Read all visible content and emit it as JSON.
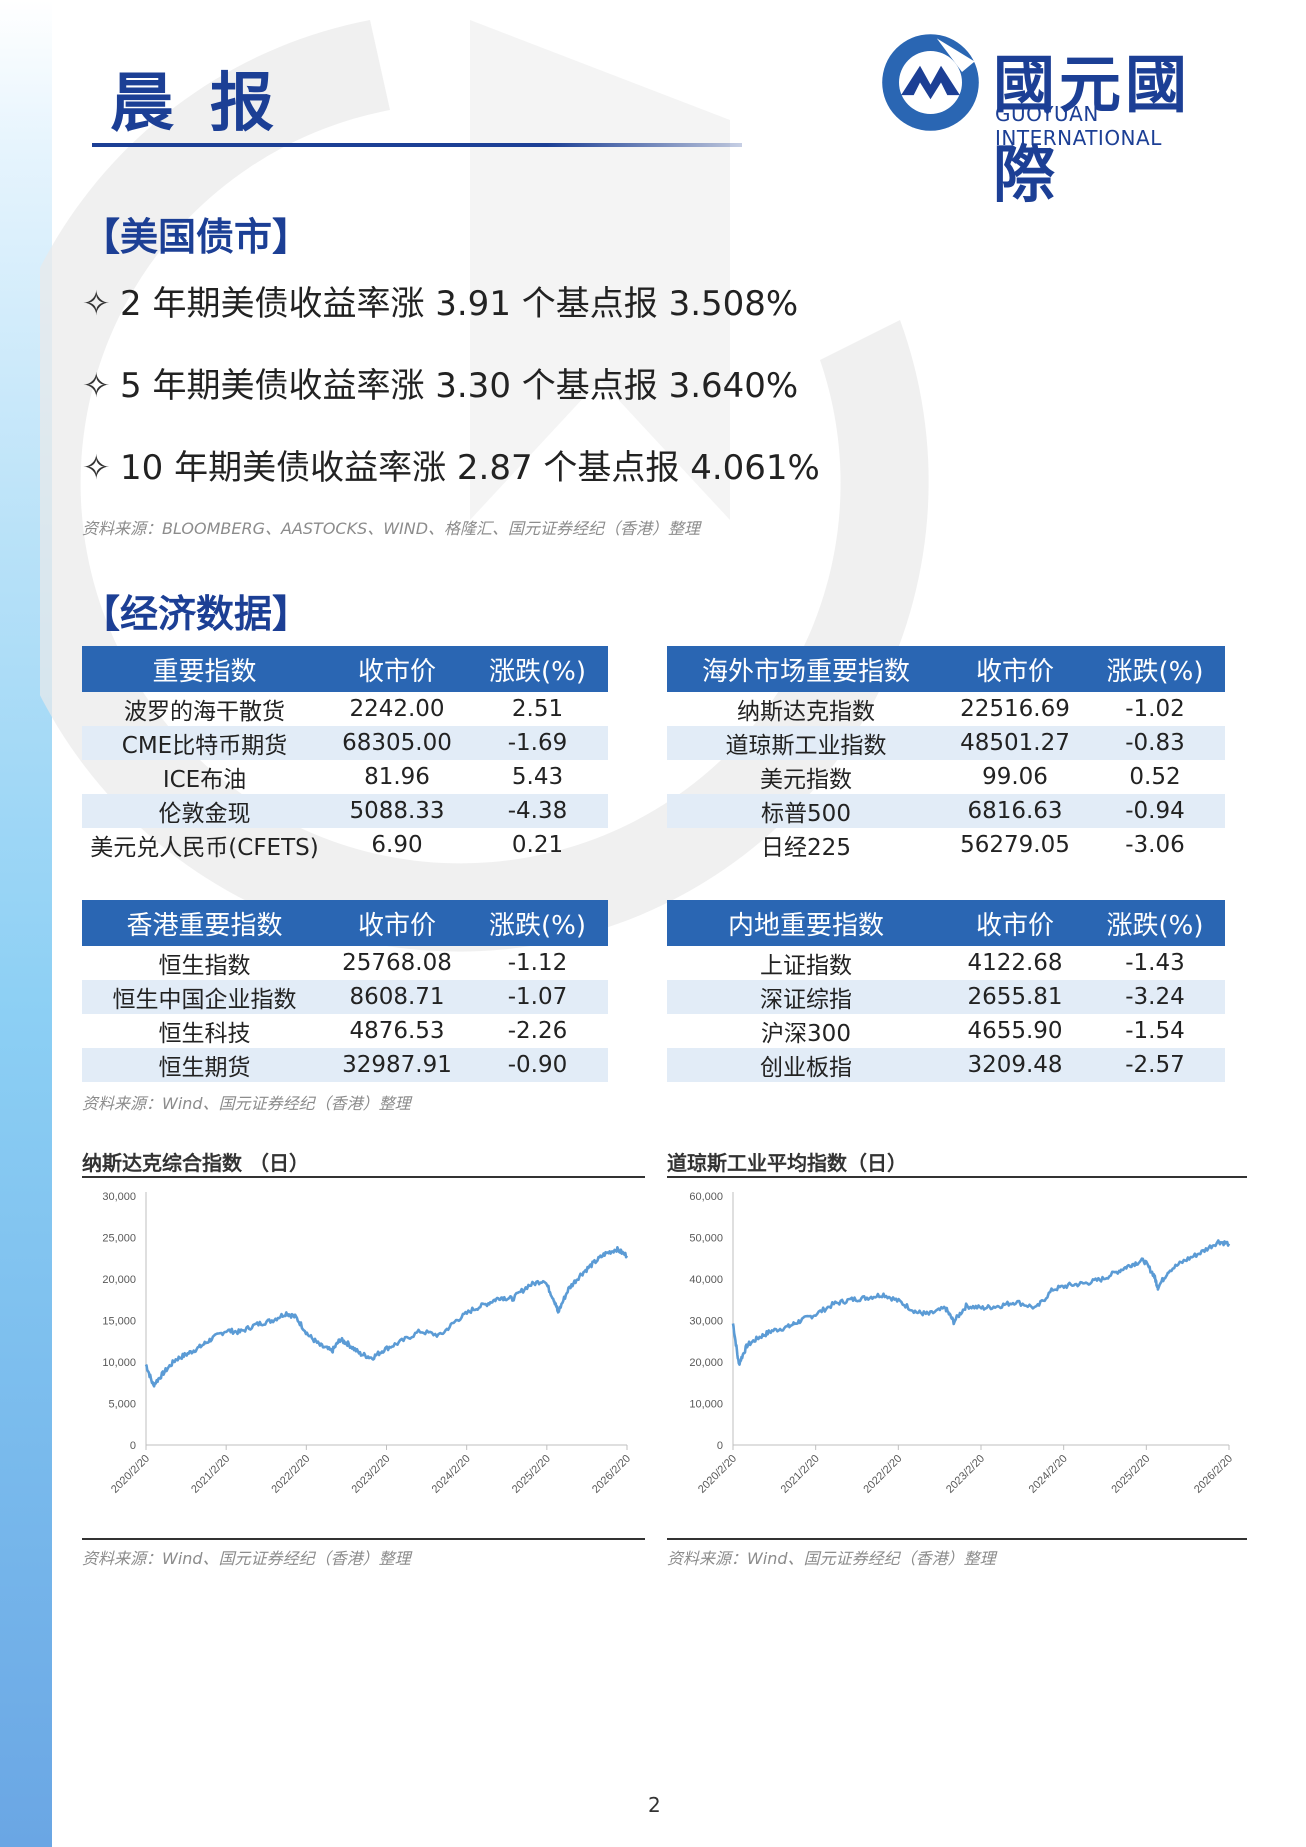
{
  "header": {
    "title": "晨报",
    "logo_cn": "國元國際",
    "logo_en": "GUOYUAN INTERNATIONAL"
  },
  "bond": {
    "heading": "【美国债市】",
    "items": [
      "2 年期美债收益率涨 3.91 个基点报 3.508%",
      "5 年期美债收益率涨 3.30 个基点报 3.640%",
      "10 年期美债收益率涨 2.87 个基点报 4.061%"
    ],
    "source": "资料来源：BLOOMBERG、AASTOCKS、WIND、格隆汇、国元证券经纪（香港）整理"
  },
  "econ": {
    "heading": "【经济数据】",
    "tables": {
      "key": {
        "headers": [
          "重要指数",
          "收市价",
          "涨跌(%)"
        ],
        "rows": [
          [
            "波罗的海干散货",
            "2242.00",
            "2.51"
          ],
          [
            "CME比特币期货",
            "68305.00",
            "-1.69"
          ],
          [
            "ICE布油",
            "81.96",
            "5.43"
          ],
          [
            "伦敦金现",
            "5088.33",
            "-4.38"
          ],
          [
            "美元兑人民币(CFETS)",
            "6.90",
            "0.21"
          ]
        ]
      },
      "overseas": {
        "headers": [
          "海外市场重要指数",
          "收市价",
          "涨跌(%)"
        ],
        "rows": [
          [
            "纳斯达克指数",
            "22516.69",
            "-1.02"
          ],
          [
            "道琼斯工业指数",
            "48501.27",
            "-0.83"
          ],
          [
            "美元指数",
            "99.06",
            "0.52"
          ],
          [
            "标普500",
            "6816.63",
            "-0.94"
          ],
          [
            "日经225",
            "56279.05",
            "-3.06"
          ]
        ]
      },
      "hk": {
        "headers": [
          "香港重要指数",
          "收市价",
          "涨跌(%)"
        ],
        "rows": [
          [
            "恒生指数",
            "25768.08",
            "-1.12"
          ],
          [
            "恒生中国企业指数",
            "8608.71",
            "-1.07"
          ],
          [
            "恒生科技",
            "4876.53",
            "-2.26"
          ],
          [
            "恒生期货",
            "32987.91",
            "-0.90"
          ]
        ]
      },
      "mainland": {
        "headers": [
          "内地重要指数",
          "收市价",
          "涨跌(%)"
        ],
        "rows": [
          [
            "上证指数",
            "4122.68",
            "-1.43"
          ],
          [
            "深证综指",
            "2655.81",
            "-3.24"
          ],
          [
            "沪深300",
            "4655.90",
            "-1.54"
          ],
          [
            "创业板指",
            "3209.48",
            "-2.57"
          ]
        ]
      }
    },
    "source": "资料来源：Wind、国元证券经纪（香港）整理"
  },
  "chart_data": [
    {
      "type": "line",
      "title": "纳斯达克综合指数 （日）",
      "x_ticks": [
        "2020/2/20",
        "2021/2/20",
        "2022/2/20",
        "2023/2/20",
        "2024/2/20",
        "2025/2/20",
        "2026/2/20"
      ],
      "y_ticks": [
        "0",
        "5,000",
        "10,000",
        "15,000",
        "20,000",
        "25,000",
        "30,000"
      ],
      "ylim": [
        0,
        30000
      ],
      "color": "#5b9bd5",
      "x": [
        2020.13,
        2020.22,
        2020.35,
        2020.5,
        2020.65,
        2020.8,
        2020.95,
        2021.13,
        2021.3,
        2021.5,
        2021.7,
        2021.88,
        2022.0,
        2022.15,
        2022.3,
        2022.45,
        2022.55,
        2022.65,
        2022.8,
        2022.95,
        2023.1,
        2023.3,
        2023.55,
        2023.8,
        2024.0,
        2024.2,
        2024.4,
        2024.55,
        2024.7,
        2024.9,
        2025.1,
        2025.22,
        2025.27,
        2025.4,
        2025.55,
        2025.7,
        2025.85,
        2026.0,
        2026.13
      ],
      "values": [
        9700,
        7200,
        8700,
        10300,
        11000,
        11800,
        12800,
        13800,
        13600,
        14500,
        15000,
        15900,
        15400,
        13300,
        12000,
        11300,
        12700,
        12200,
        11000,
        10500,
        11500,
        12400,
        13700,
        13200,
        15000,
        16300,
        17100,
        17800,
        17600,
        19200,
        19900,
        17500,
        16000,
        18800,
        20500,
        21800,
        23000,
        23600,
        22800
      ]
    },
    {
      "type": "line",
      "title": "道琼斯工业平均指数（日）",
      "x_ticks": [
        "2020/2/20",
        "2021/2/20",
        "2022/2/20",
        "2023/2/20",
        "2024/2/20",
        "2025/2/20",
        "2026/2/20"
      ],
      "y_ticks": [
        "0",
        "10,000",
        "20,000",
        "30,000",
        "40,000",
        "50,000",
        "60,000"
      ],
      "ylim": [
        0,
        60000
      ],
      "color": "#5b9bd5",
      "x": [
        2020.13,
        2020.2,
        2020.3,
        2020.45,
        2020.6,
        2020.8,
        2020.95,
        2021.13,
        2021.35,
        2021.55,
        2021.75,
        2021.95,
        2022.15,
        2022.35,
        2022.5,
        2022.7,
        2022.8,
        2022.95,
        2023.15,
        2023.35,
        2023.55,
        2023.8,
        2024.0,
        2024.2,
        2024.4,
        2024.6,
        2024.8,
        2024.95,
        2025.1,
        2025.22,
        2025.27,
        2025.4,
        2025.6,
        2025.8,
        2026.0,
        2026.13
      ],
      "values": [
        29300,
        19500,
        24000,
        26000,
        27500,
        28500,
        30000,
        31500,
        34000,
        35000,
        35500,
        36300,
        34500,
        32000,
        31500,
        33000,
        29700,
        33500,
        33000,
        33500,
        34500,
        33000,
        37500,
        38500,
        39000,
        40000,
        42000,
        43500,
        44500,
        41000,
        38000,
        42000,
        44500,
        46500,
        49000,
        48500
      ]
    }
  ],
  "chart_source": "资料来源：Wind、国元证券经纪（香港）整理",
  "page_number": "2"
}
